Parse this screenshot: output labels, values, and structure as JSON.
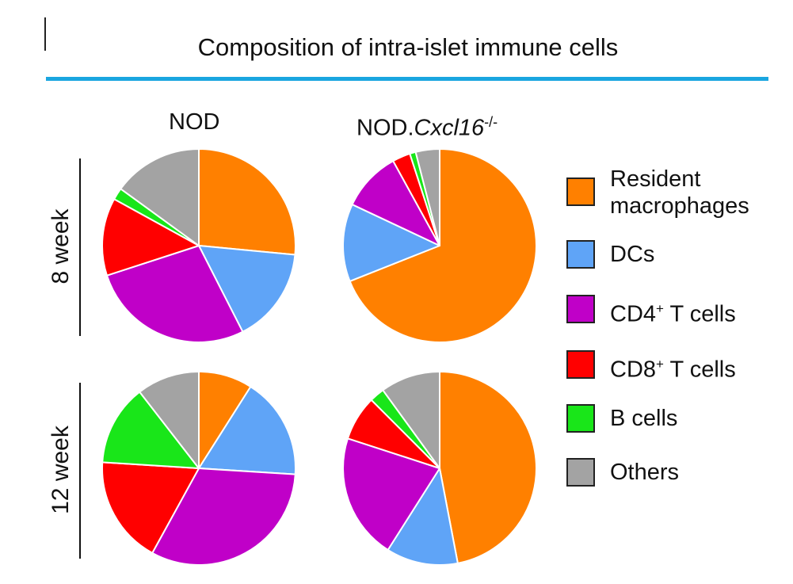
{
  "colors": {
    "title_bar": "#1aa6e0",
    "resident_macrophages": "#ff8000",
    "dcs": "#5fa4f7",
    "cd4": "#c000c8",
    "cd8": "#ff0000",
    "b_cells": "#19e619",
    "others": "#a3a3a3"
  },
  "chart_data": {
    "type": "pie",
    "title": "Composition of intra-islet immune cells",
    "columns": [
      {
        "prefix": "NOD",
        "gene": "",
        "superscript": ""
      },
      {
        "prefix": "NOD.",
        "gene": "Cxcl16",
        "superscript": "-/-"
      }
    ],
    "rows": [
      "8 week",
      "12 week"
    ],
    "categories": [
      "Resident macrophages",
      "DCs",
      "CD4+ T cells",
      "CD8+ T cells",
      "B cells",
      "Others"
    ],
    "legend": [
      {
        "key": "resident_macrophages",
        "lines": [
          "Resident",
          "macrophages"
        ],
        "superscript": "",
        "suffix": ""
      },
      {
        "key": "dcs",
        "lines": [
          "DCs"
        ],
        "superscript": "",
        "suffix": ""
      },
      {
        "key": "cd4",
        "lines": [
          "CD4"
        ],
        "superscript": "+",
        "suffix": " T cells"
      },
      {
        "key": "cd8",
        "lines": [
          "CD8"
        ],
        "superscript": "+",
        "suffix": " T cells"
      },
      {
        "key": "b_cells",
        "lines": [
          "B cells"
        ],
        "superscript": "",
        "suffix": ""
      },
      {
        "key": "others",
        "lines": [
          "Others"
        ],
        "superscript": "",
        "suffix": ""
      }
    ],
    "pies": [
      {
        "row": "8 week",
        "column": "NOD",
        "values": [
          26.5,
          16,
          27.5,
          13,
          2,
          15
        ]
      },
      {
        "row": "8 week",
        "column": "NOD.Cxcl16-/-",
        "values": [
          69,
          13,
          10,
          3,
          1,
          4
        ]
      },
      {
        "row": "12 week",
        "column": "NOD",
        "values": [
          9,
          17,
          32,
          18,
          13.5,
          10.5
        ]
      },
      {
        "row": "12 week",
        "column": "NOD.Cxcl16-/-",
        "values": [
          47,
          12,
          21,
          7.5,
          2.5,
          10
        ]
      }
    ],
    "start_angle": "12 o'clock",
    "direction": "clockwise"
  }
}
